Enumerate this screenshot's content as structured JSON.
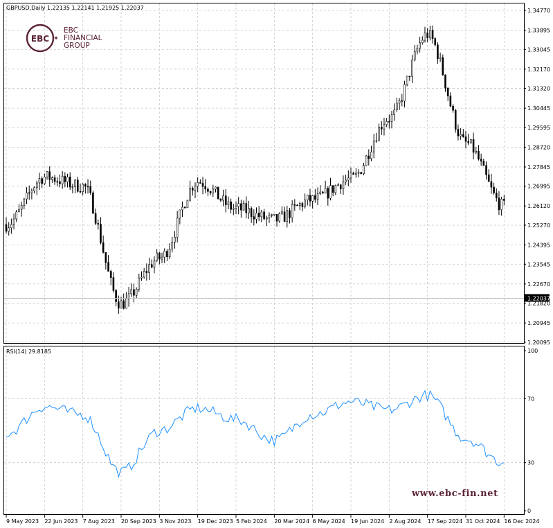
{
  "header": {
    "symbol_info": "GBPUSD,Daily  1.22135 1.22141 1.21925 1.22037",
    "rsi_info": "RSI(14) 29.8185"
  },
  "logo": {
    "line1": "EBC",
    "line2": "FINANCIAL",
    "line3": "GROUP",
    "monogram": "EBC"
  },
  "watermark": "www.ebc-fin.net",
  "colors": {
    "candles": "#000000",
    "rsi_line": "#1e90ff",
    "grid": "#c8c8c8",
    "brand": "#5b2333"
  },
  "chart_data": [
    {
      "type": "candlestick",
      "symbol": "GBPUSD",
      "timeframe": "Daily",
      "last_bar": {
        "open": 1.22135,
        "high": 1.22141,
        "low": 1.21925,
        "close": 1.22037
      },
      "current_price_label": "1.22037",
      "ylim": [
        1.2009,
        1.3477
      ],
      "y_ticks": [
        "1.34770",
        "1.33895",
        "1.33045",
        "1.32170",
        "1.31320",
        "1.30445",
        "1.29595",
        "1.28720",
        "1.27845",
        "1.26995",
        "1.26120",
        "1.25270",
        "1.24395",
        "1.23545",
        "1.22670",
        "1.21820",
        "1.20945",
        "1.20095"
      ],
      "x_ticks": [
        "9 May 2023",
        "22 Jun 2023",
        "7 Aug 2023",
        "20 Sep 2023",
        "3 Nov 2023",
        "19 Dec 2023",
        "5 Feb 2024",
        "20 Mar 2024",
        "6 May 2024",
        "19 Jun 2024",
        "2 Aug 2024",
        "17 Sep 2024",
        "31 Oct 2024",
        "16 Dec 2024"
      ],
      "grid": true,
      "x": [
        "9 May 2023",
        "22 Jun 2023",
        "7 Aug 2023",
        "20 Sep 2023",
        "3 Nov 2023",
        "19 Dec 2023",
        "5 Feb 2024",
        "20 Mar 2024",
        "6 May 2024",
        "19 Jun 2024",
        "2 Aug 2024",
        "17 Sep 2024",
        "31 Oct 2024",
        "16 Dec 2024"
      ],
      "close": [
        1.253,
        1.274,
        1.27,
        1.218,
        1.238,
        1.272,
        1.26,
        1.255,
        1.264,
        1.273,
        1.3,
        1.337,
        1.289,
        1.261
      ]
    },
    {
      "type": "line",
      "indicator": "RSI(14)",
      "current_value": 29.8185,
      "ylim": [
        0,
        100
      ],
      "y_ticks": [
        "100",
        "70",
        "30",
        "0"
      ],
      "levels": [
        70,
        30
      ],
      "x": [
        "9 May 2023",
        "22 Jun 2023",
        "7 Aug 2023",
        "20 Sep 2023",
        "3 Nov 2023",
        "19 Dec 2023",
        "5 Feb 2024",
        "20 Mar 2024",
        "6 May 2024",
        "19 Jun 2024",
        "2 Aug 2024",
        "17 Sep 2024",
        "31 Oct 2024",
        "16 Dec 2024"
      ],
      "values": [
        48,
        65,
        60,
        24,
        50,
        64,
        57,
        44,
        60,
        68,
        63,
        72,
        45,
        30
      ]
    }
  ]
}
